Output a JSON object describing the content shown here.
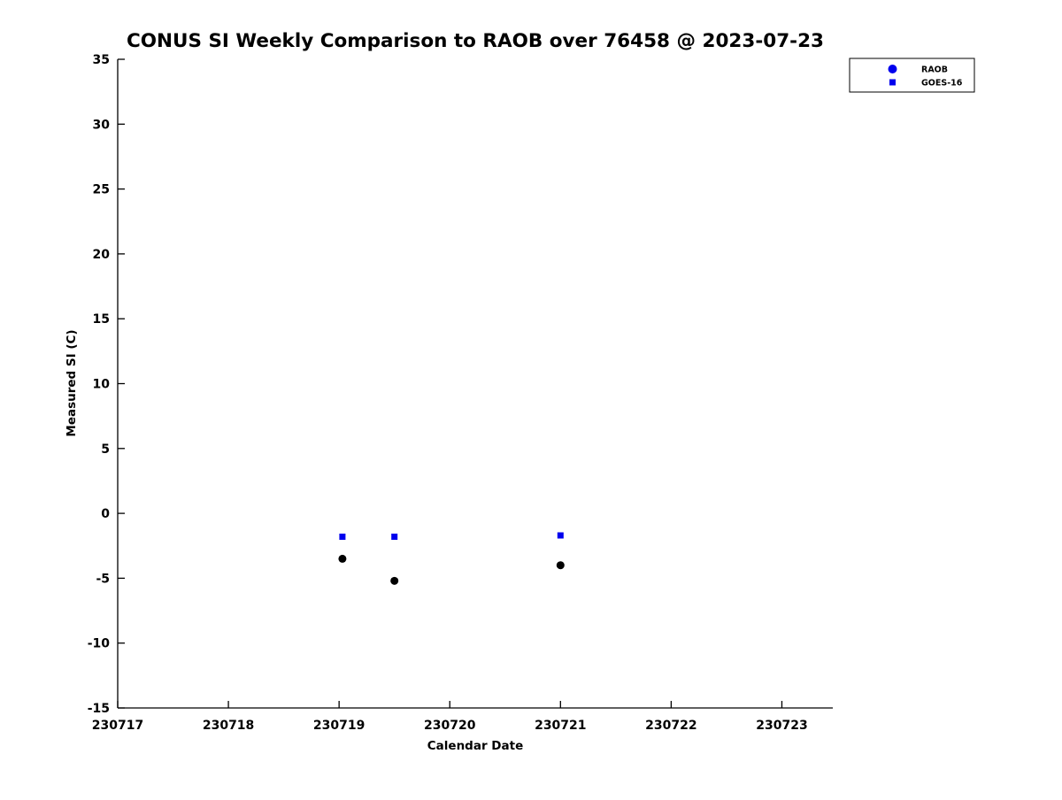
{
  "figure": {
    "title": "CONUS SI Weekly Comparison to RAOB over 76458 @ 2023-07-23"
  },
  "chart_data": {
    "type": "scatter",
    "title": "CONUS SI Weekly Comparison to RAOB over 76458 @ 2023-07-23",
    "xlabel": "Calendar Date",
    "ylabel": "Measured SI (C)",
    "xlim": [
      230717,
      230723.46
    ],
    "ylim": [
      -15,
      35
    ],
    "xticks": [
      230717,
      230718,
      230719,
      230720,
      230721,
      230722,
      230723
    ],
    "yticks": [
      -15,
      -10,
      -5,
      0,
      5,
      10,
      15,
      20,
      25,
      30,
      35
    ],
    "grid": false,
    "legend_position": "top-right",
    "background": "#ffffff",
    "axis_color": "#000000",
    "series": [
      {
        "name": "RAOB",
        "marker": "circle",
        "color": "#000000",
        "legend_color": "#0000ee",
        "x": [
          230719.03,
          230719.5,
          230721.0
        ],
        "y": [
          -3.5,
          -5.2,
          -4.0
        ]
      },
      {
        "name": "GOES-16",
        "marker": "square",
        "color": "#0000ee",
        "legend_color": "#0000ee",
        "x": [
          230719.03,
          230719.5,
          230721.0
        ],
        "y": [
          -1.8,
          -1.8,
          -1.7
        ]
      }
    ]
  }
}
